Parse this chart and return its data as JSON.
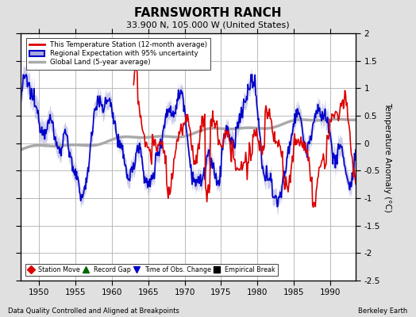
{
  "title": "FARNSWORTH RANCH",
  "subtitle": "33.900 N, 105.000 W (United States)",
  "ylabel": "Temperature Anomaly (°C)",
  "xlabel_bottom_left": "Data Quality Controlled and Aligned at Breakpoints",
  "xlabel_bottom_right": "Berkeley Earth",
  "xlim": [
    1947.5,
    1993.5
  ],
  "ylim": [
    -2.5,
    2.0
  ],
  "yticks": [
    -2.5,
    -2.0,
    -1.5,
    -1.0,
    -0.5,
    0.0,
    0.5,
    1.0,
    1.5,
    2.0
  ],
  "xticks": [
    1950,
    1955,
    1960,
    1965,
    1970,
    1975,
    1980,
    1985,
    1990
  ],
  "bg_color": "#e0e0e0",
  "plot_bg_color": "#ffffff",
  "grid_color": "#b0b0b0",
  "red_color": "#dd0000",
  "blue_color": "#0000cc",
  "blue_fill_color": "#aaaadd",
  "gray_color": "#aaaaaa",
  "gray_lw": 2.5,
  "red_lw": 1.2,
  "blue_lw": 1.2,
  "legend_labels": [
    "This Temperature Station (12-month average)",
    "Regional Expectation with 95% uncertainty",
    "Global Land (5-year average)"
  ],
  "marker_legend": [
    {
      "label": "Station Move",
      "color": "#dd0000",
      "marker": "D"
    },
    {
      "label": "Record Gap",
      "color": "#006600",
      "marker": "^"
    },
    {
      "label": "Time of Obs. Change",
      "color": "#0000cc",
      "marker": "v"
    },
    {
      "label": "Empirical Break",
      "color": "#000000",
      "marker": "s"
    }
  ],
  "seed": 12345
}
